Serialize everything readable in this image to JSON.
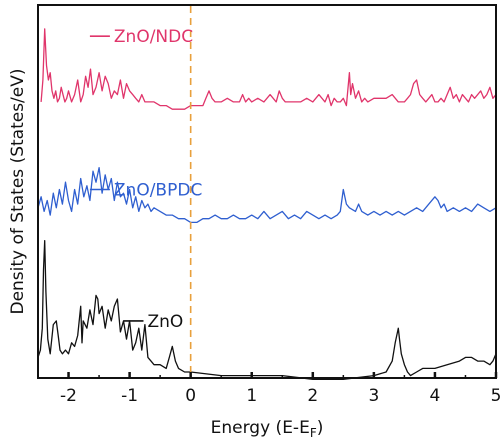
{
  "chart_data": {
    "type": "line",
    "title": "",
    "xlabel": "Energy (E-E",
    "xlabel_sub": "F",
    "xlabel_close": ")",
    "ylabel": "Density of States (States/eV)",
    "xlim": [
      -2.5,
      5
    ],
    "xticks": [
      -2,
      -1,
      0,
      1,
      2,
      3,
      4,
      5
    ],
    "xtick_labels": [
      "-2",
      "-1",
      "0",
      "1",
      "2",
      "3",
      "4",
      "5"
    ],
    "ylim": [
      0,
      100
    ],
    "yticks_shown": false,
    "grid": false,
    "fermi_level": {
      "x": 0,
      "color": "#e8a03c",
      "style": "dashed"
    },
    "series": [
      {
        "name": "ZnO/NDC",
        "color": "#e0356b",
        "label_x": -1.65,
        "x": [
          -2.45,
          -2.42,
          -2.39,
          -2.36,
          -2.33,
          -2.3,
          -2.27,
          -2.24,
          -2.21,
          -2.18,
          -2.15,
          -2.12,
          -2.09,
          -2.06,
          -2.03,
          -2.0,
          -1.95,
          -1.9,
          -1.85,
          -1.8,
          -1.76,
          -1.72,
          -1.68,
          -1.64,
          -1.6,
          -1.55,
          -1.5,
          -1.45,
          -1.4,
          -1.35,
          -1.3,
          -1.25,
          -1.2,
          -1.15,
          -1.1,
          -1.05,
          -1.0,
          -0.95,
          -0.9,
          -0.85,
          -0.8,
          -0.75,
          -0.7,
          -0.65,
          -0.6,
          -0.5,
          -0.4,
          -0.3,
          -0.2,
          -0.1,
          0.0,
          0.1,
          0.2,
          0.25,
          0.3,
          0.35,
          0.4,
          0.5,
          0.6,
          0.7,
          0.8,
          0.85,
          0.9,
          0.95,
          1.0,
          1.1,
          1.2,
          1.3,
          1.4,
          1.45,
          1.5,
          1.55,
          1.6,
          1.7,
          1.8,
          1.9,
          2.0,
          2.1,
          2.2,
          2.25,
          2.3,
          2.35,
          2.4,
          2.45,
          2.5,
          2.55,
          2.6,
          2.62,
          2.65,
          2.7,
          2.75,
          2.8,
          2.85,
          2.9,
          3.0,
          3.1,
          3.2,
          3.3,
          3.4,
          3.5,
          3.55,
          3.6,
          3.65,
          3.7,
          3.75,
          3.8,
          3.85,
          3.9,
          3.95,
          4.0,
          4.05,
          4.1,
          4.15,
          4.2,
          4.25,
          4.3,
          4.35,
          4.4,
          4.45,
          4.5,
          4.55,
          4.6,
          4.65,
          4.7,
          4.75,
          4.8,
          4.85,
          4.9,
          4.95,
          5.0
        ],
        "y": [
          74,
          80,
          94,
          84,
          80,
          82,
          77,
          75,
          77,
          74,
          75,
          78,
          76,
          74,
          75,
          77,
          74,
          76,
          80,
          74,
          76,
          81,
          78,
          83,
          76,
          78,
          82,
          77,
          81,
          79,
          75,
          77,
          76,
          80,
          75,
          79,
          77,
          76,
          75,
          74,
          76,
          74,
          74,
          74,
          74,
          73,
          73,
          72,
          72,
          72,
          73,
          73,
          73,
          75,
          77,
          75,
          74,
          74,
          75,
          74,
          74,
          76,
          74,
          75,
          74,
          75,
          74,
          76,
          74,
          77,
          75,
          74,
          74,
          74,
          74,
          75,
          74,
          76,
          74,
          76,
          73,
          75,
          74,
          74,
          75,
          73,
          82,
          76,
          79,
          75,
          77,
          74,
          75,
          74,
          75,
          75,
          75,
          76,
          74,
          74,
          75,
          76,
          79,
          80,
          76,
          75,
          74,
          75,
          76,
          74,
          74,
          75,
          74,
          76,
          78,
          75,
          76,
          74,
          76,
          75,
          74,
          76,
          75,
          76,
          77,
          75,
          76,
          78,
          75,
          76
        ]
      },
      {
        "name": "ZnO/BPDC",
        "color": "#2f5fd0",
        "label_x": -1.65,
        "x": [
          -2.5,
          -2.45,
          -2.4,
          -2.35,
          -2.3,
          -2.25,
          -2.2,
          -2.15,
          -2.1,
          -2.05,
          -2.0,
          -1.95,
          -1.9,
          -1.85,
          -1.8,
          -1.75,
          -1.7,
          -1.65,
          -1.6,
          -1.55,
          -1.5,
          -1.45,
          -1.4,
          -1.35,
          -1.3,
          -1.25,
          -1.2,
          -1.15,
          -1.1,
          -1.05,
          -1.0,
          -0.95,
          -0.9,
          -0.85,
          -0.8,
          -0.75,
          -0.7,
          -0.65,
          -0.6,
          -0.5,
          -0.4,
          -0.3,
          -0.2,
          -0.1,
          0.0,
          0.1,
          0.2,
          0.3,
          0.4,
          0.5,
          0.6,
          0.7,
          0.8,
          0.9,
          1.0,
          1.1,
          1.2,
          1.3,
          1.4,
          1.5,
          1.6,
          1.7,
          1.8,
          1.9,
          2.0,
          2.1,
          2.2,
          2.3,
          2.4,
          2.45,
          2.5,
          2.55,
          2.6,
          2.7,
          2.75,
          2.8,
          2.9,
          3.0,
          3.1,
          3.2,
          3.3,
          3.4,
          3.5,
          3.6,
          3.7,
          3.8,
          3.9,
          4.0,
          4.05,
          4.1,
          4.15,
          4.2,
          4.3,
          4.4,
          4.5,
          4.6,
          4.7,
          4.8,
          4.9,
          5.0
        ],
        "y": [
          45,
          48,
          44,
          47,
          43,
          49,
          45,
          50,
          46,
          52,
          47,
          44,
          50,
          46,
          53,
          48,
          51,
          47,
          55,
          52,
          56,
          49,
          54,
          50,
          53,
          47,
          52,
          48,
          49,
          46,
          50,
          45,
          48,
          44,
          47,
          45,
          46,
          44,
          45,
          44,
          43,
          43,
          42,
          42,
          41,
          41,
          42,
          42,
          43,
          42,
          42,
          43,
          42,
          42,
          43,
          42,
          44,
          42,
          43,
          44,
          42,
          43,
          42,
          44,
          43,
          42,
          43,
          42,
          43,
          44,
          50,
          46,
          45,
          44,
          46,
          44,
          43,
          44,
          43,
          44,
          43,
          44,
          43,
          44,
          45,
          44,
          46,
          48,
          47,
          45,
          46,
          44,
          45,
          44,
          45,
          44,
          46,
          45,
          44,
          45
        ]
      },
      {
        "name": "ZnO",
        "color": "#111111",
        "label_x": -1.1,
        "x": [
          -2.5,
          -2.46,
          -2.43,
          -2.41,
          -2.39,
          -2.37,
          -2.34,
          -2.3,
          -2.25,
          -2.2,
          -2.17,
          -2.14,
          -2.1,
          -2.05,
          -2.0,
          -1.95,
          -1.9,
          -1.85,
          -1.8,
          -1.78,
          -1.76,
          -1.7,
          -1.65,
          -1.6,
          -1.55,
          -1.52,
          -1.5,
          -1.45,
          -1.4,
          -1.35,
          -1.3,
          -1.25,
          -1.2,
          -1.15,
          -1.1,
          -1.05,
          -1.0,
          -0.95,
          -0.9,
          -0.85,
          -0.8,
          -0.75,
          -0.7,
          -0.65,
          -0.6,
          -0.5,
          -0.4,
          -0.35,
          -0.3,
          -0.25,
          -0.2,
          -0.1,
          0.0,
          0.5,
          1.0,
          1.5,
          2.0,
          2.5,
          3.0,
          3.2,
          3.3,
          3.35,
          3.4,
          3.42,
          3.45,
          3.5,
          3.55,
          3.6,
          3.7,
          3.8,
          4.0,
          4.2,
          4.4,
          4.5,
          4.6,
          4.7,
          4.8,
          4.9,
          4.95,
          5.0
        ],
        "y": [
          4,
          6,
          12,
          28,
          36,
          22,
          9,
          5,
          13,
          14,
          10,
          6,
          5,
          6,
          5,
          8,
          7,
          10,
          18,
          8,
          14,
          12,
          17,
          13,
          21,
          20,
          16,
          18,
          12,
          17,
          14,
          18,
          20,
          11,
          14,
          9,
          14,
          6,
          8,
          12,
          6,
          13,
          4,
          3,
          2,
          2,
          1,
          4,
          7,
          3,
          1,
          0,
          0,
          -1,
          -1,
          -1,
          -2,
          -2,
          -1,
          0,
          3,
          8,
          12,
          9,
          5,
          2,
          0,
          -1,
          0,
          1,
          1,
          2,
          3,
          4,
          4,
          3,
          3,
          2,
          3,
          5
        ]
      }
    ]
  }
}
